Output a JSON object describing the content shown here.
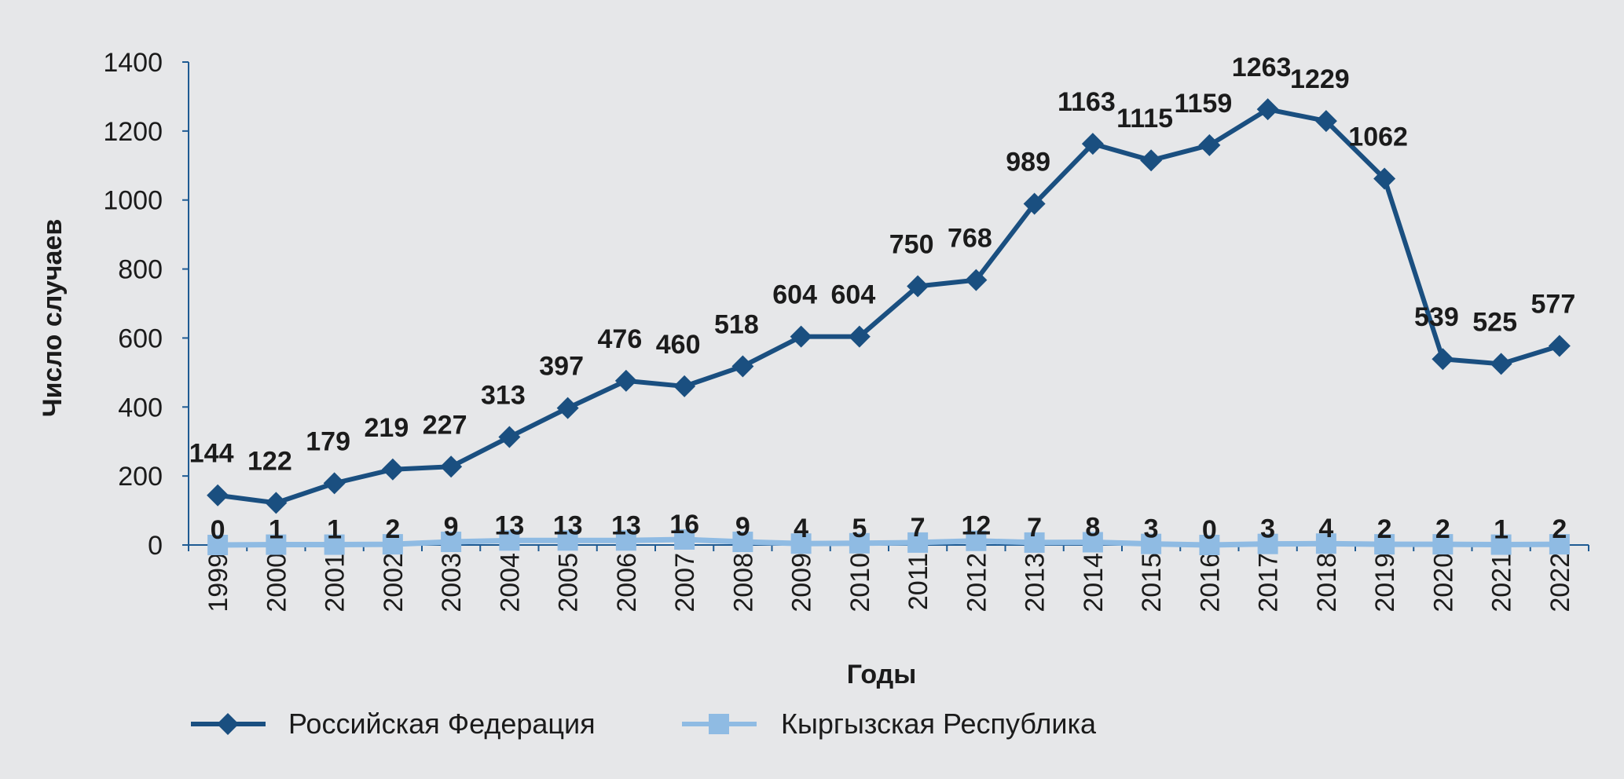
{
  "chart_data": {
    "type": "line",
    "title": "",
    "xlabel": "Годы",
    "ylabel": "Число случаев",
    "ylim": [
      0,
      1400
    ],
    "yticks": [
      0,
      200,
      400,
      600,
      800,
      1000,
      1200,
      1400
    ],
    "categories": [
      "1999",
      "2000",
      "2001",
      "2002",
      "2003",
      "2004",
      "2005",
      "2006",
      "2007",
      "2008",
      "2009",
      "2010",
      "2011",
      "2012",
      "2013",
      "2014",
      "2015",
      "2016",
      "2017",
      "2018",
      "2019",
      "2020",
      "2021",
      "2022"
    ],
    "grid": false,
    "legend_position": "bottom-left",
    "series": [
      {
        "name": "Российская Федерация",
        "color": "#1a4f80",
        "marker": "diamond",
        "values": [
          144,
          122,
          179,
          219,
          227,
          313,
          397,
          476,
          460,
          518,
          604,
          604,
          750,
          768,
          989,
          1163,
          1115,
          1159,
          1263,
          1229,
          1062,
          539,
          525,
          577
        ]
      },
      {
        "name": "Кыргызская Республика",
        "color": "#8fbbe3",
        "marker": "square",
        "values": [
          0,
          1,
          1,
          2,
          9,
          13,
          13,
          13,
          16,
          9,
          4,
          5,
          7,
          12,
          7,
          8,
          3,
          0,
          3,
          4,
          2,
          2,
          1,
          2
        ]
      }
    ]
  }
}
